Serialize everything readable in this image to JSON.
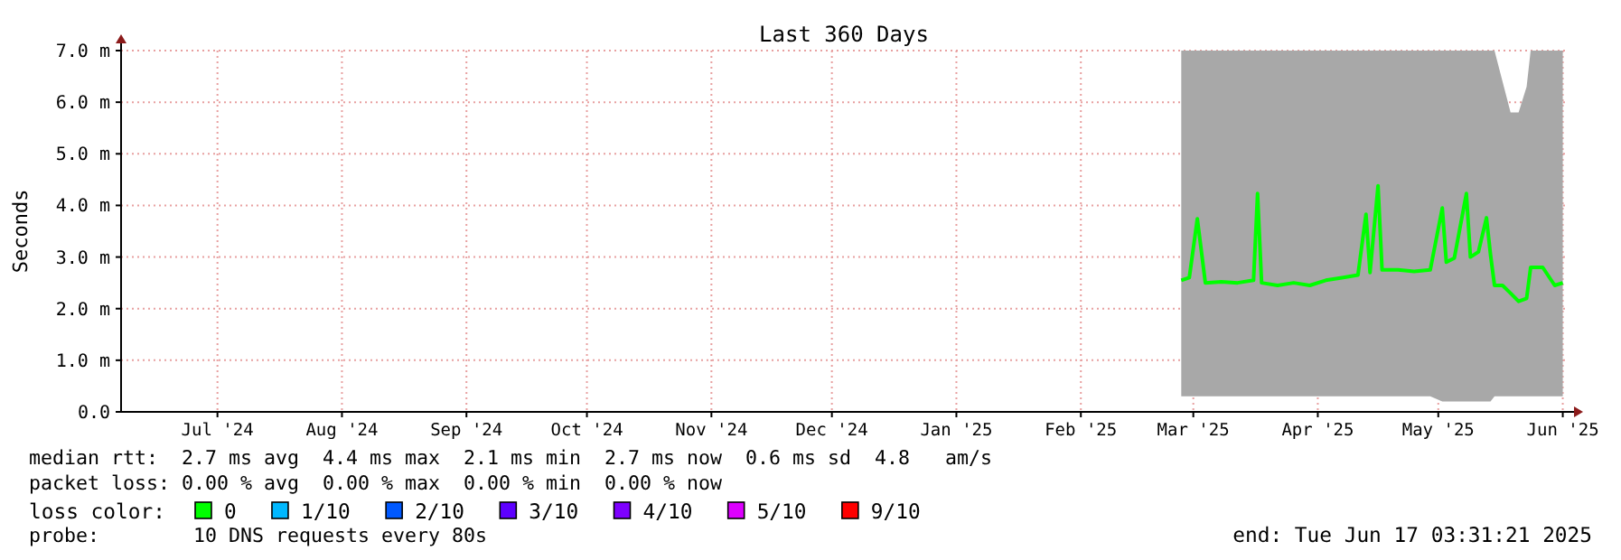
{
  "chart_data": {
    "type": "line",
    "title": "Last 360 Days",
    "ylabel": "Seconds",
    "legend_title": "loss color:",
    "legend": "bottom",
    "grid": true,
    "marker": "none",
    "line_style": "solid",
    "xlim": [
      "2024-06-22",
      "2025-06-17"
    ],
    "xticks": [
      {
        "value": "2024-07-16",
        "label": "Jul '24"
      },
      {
        "value": "2024-08-16",
        "label": "Aug '24"
      },
      {
        "value": "2024-09-16",
        "label": "Sep '24"
      },
      {
        "value": "2024-10-16",
        "label": "Oct '24"
      },
      {
        "value": "2024-11-16",
        "label": "Nov '24"
      },
      {
        "value": "2024-12-16",
        "label": "Dec '24"
      },
      {
        "value": "2025-01-16",
        "label": "Jan '25"
      },
      {
        "value": "2025-02-16",
        "label": "Feb '25"
      },
      {
        "value": "2025-03-16",
        "label": "Mar '25"
      },
      {
        "value": "2025-04-16",
        "label": "Apr '25"
      },
      {
        "value": "2025-05-16",
        "label": "May '25"
      },
      {
        "value": "2025-06-16",
        "label": "Jun '25"
      }
    ],
    "ylim": [
      0,
      7
    ],
    "yticks": [
      {
        "value": 0,
        "label": "0.0"
      },
      {
        "value": 1,
        "label": "1.0 m"
      },
      {
        "value": 2,
        "label": "2.0 m"
      },
      {
        "value": 3,
        "label": "3.0 m"
      },
      {
        "value": 4,
        "label": "4.0 m"
      },
      {
        "value": 5,
        "label": "5.0 m"
      },
      {
        "value": 6,
        "label": "6.0 m"
      },
      {
        "value": 7,
        "label": "7.0 m"
      }
    ],
    "series": [
      {
        "name": "0",
        "color": "#00ff00",
        "x": [
          "2025-03-13",
          "2025-03-15",
          "2025-03-17",
          "2025-03-19",
          "2025-03-23",
          "2025-03-27",
          "2025-03-31",
          "2025-04-01",
          "2025-04-02",
          "2025-04-06",
          "2025-04-10",
          "2025-04-14",
          "2025-04-18",
          "2025-04-22",
          "2025-04-26",
          "2025-04-28",
          "2025-04-29",
          "2025-05-01",
          "2025-05-02",
          "2025-05-06",
          "2025-05-10",
          "2025-05-14",
          "2025-05-17",
          "2025-05-18",
          "2025-05-20",
          "2025-05-23",
          "2025-05-24",
          "2025-05-26",
          "2025-05-28",
          "2025-05-29",
          "2025-05-30",
          "2025-06-01",
          "2025-06-03",
          "2025-06-05",
          "2025-06-07",
          "2025-06-08",
          "2025-06-11",
          "2025-06-14",
          "2025-06-16"
        ],
        "values": [
          2.55,
          2.6,
          3.74,
          2.5,
          2.52,
          2.5,
          2.55,
          4.23,
          2.5,
          2.45,
          2.5,
          2.45,
          2.55,
          2.6,
          2.65,
          3.83,
          2.7,
          4.38,
          2.75,
          2.75,
          2.72,
          2.75,
          3.95,
          2.9,
          2.98,
          4.23,
          3.0,
          3.1,
          3.76,
          3.05,
          2.45,
          2.45,
          2.3,
          2.14,
          2.2,
          2.8,
          2.8,
          2.45,
          2.5
        ],
        "lower": [
          0.3,
          0.3,
          0.3,
          0.3,
          0.3,
          0.3,
          0.3,
          0.3,
          0.3,
          0.3,
          0.3,
          0.3,
          0.3,
          0.3,
          0.3,
          0.3,
          0.3,
          0.3,
          0.3,
          0.3,
          0.3,
          0.3,
          0.2,
          0.2,
          0.2,
          0.2,
          0.2,
          0.2,
          0.2,
          0.2,
          0.3,
          0.3,
          0.3,
          0.3,
          0.3,
          0.3,
          0.3,
          0.3,
          0.3
        ],
        "upper": [
          7,
          7,
          7,
          7,
          7,
          7,
          7,
          7,
          7,
          7,
          7,
          7,
          7,
          7,
          7,
          7,
          7,
          7,
          7,
          7,
          7,
          7,
          7,
          7,
          7,
          7,
          7,
          7,
          7,
          7,
          7,
          6.4,
          5.8,
          5.8,
          6.3,
          7,
          7,
          7,
          7
        ]
      },
      {
        "name": "1/10",
        "color": "#00b8ff"
      },
      {
        "name": "2/10",
        "color": "#0059ff"
      },
      {
        "name": "3/10",
        "color": "#5e00ff"
      },
      {
        "name": "4/10",
        "color": "#7e00ff"
      },
      {
        "name": "5/10",
        "color": "#dd00ff"
      },
      {
        "name": "9/10",
        "color": "#ff0000"
      }
    ],
    "annotations": [
      "median rtt:  2.7 ms avg  4.4 ms max  2.1 ms min  2.7 ms now  0.6 ms sd  4.8   am/s",
      "packet loss: 0.00 % avg  0.00 % max  0.00 % min  0.00 % now",
      "probe:        10 DNS requests every 80s",
      "end: Tue Jun 17 03:31:21 2025"
    ]
  }
}
